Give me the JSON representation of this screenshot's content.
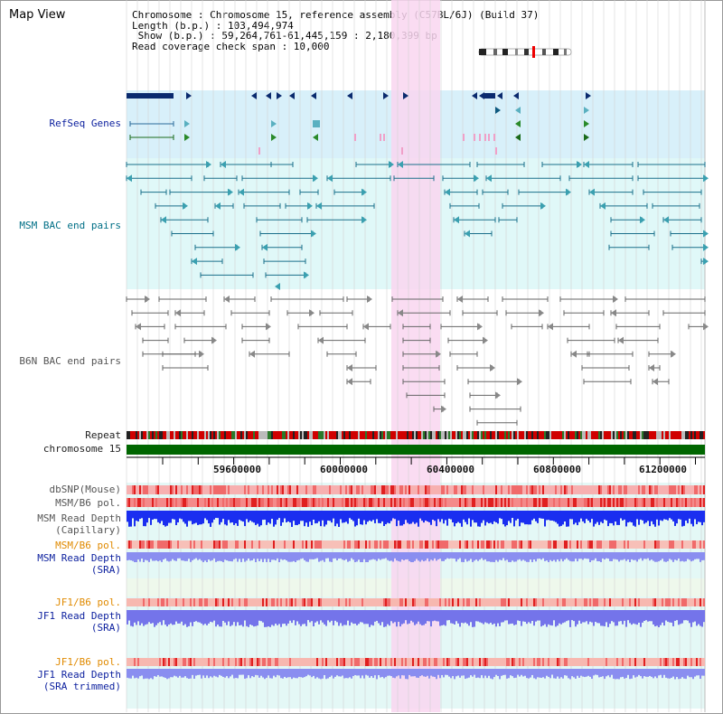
{
  "title": "Map View",
  "info": {
    "chromosome": "Chromosome : Chromosome 15, reference assembly (C57BL/6J) (Build 37)",
    "length": "Length (b.p.) : 103,494,974",
    "show": " Show (b.p.) : 59,264,761-61,445,159 : 2,180,399 bp",
    "coverage": "Read coverage check span : 10,000"
  },
  "tracks": {
    "refseq": "RefSeq Genes",
    "msm_bac": "MSM BAC end pairs",
    "b6n_bac": "B6N BAC end pairs",
    "repeat": "Repeat",
    "chromosome": "chromosome 15",
    "dbsnp": "dbSNP(Mouse)",
    "msm_b6_pol1": "MSM/B6 pol.",
    "msm_depth_cap_1": "MSM Read Depth",
    "msm_depth_cap_2": "(Capillary)",
    "msm_b6_pol2": "MSM/B6 pol.",
    "msm_depth_sra_1": "MSM Read Depth",
    "msm_depth_sra_2": "(SRA)",
    "jf1_b6_pol1": "JF1/B6 pol.",
    "jf1_depth_sra_1": "JF1 Read Depth",
    "jf1_depth_sra_2": "(SRA)",
    "jf1_b6_pol2": "JF1/B6 pol.",
    "jf1_depth_trim_1": "JF1 Read Depth",
    "jf1_depth_trim_2": "(SRA trimmed)"
  },
  "axis": {
    "ticks": [
      "59600000",
      "60000000",
      "60400000",
      "60800000",
      "61200000"
    ]
  },
  "colors": {
    "highlight": "#f9d6f0",
    "refseq_bg": "#d8f0fa",
    "msm_bg": "#e0f8f8",
    "chromosome": "#006600",
    "navy_label": "#0b1f9e",
    "teal_label": "#006f86",
    "orange_label": "#e08a00"
  }
}
